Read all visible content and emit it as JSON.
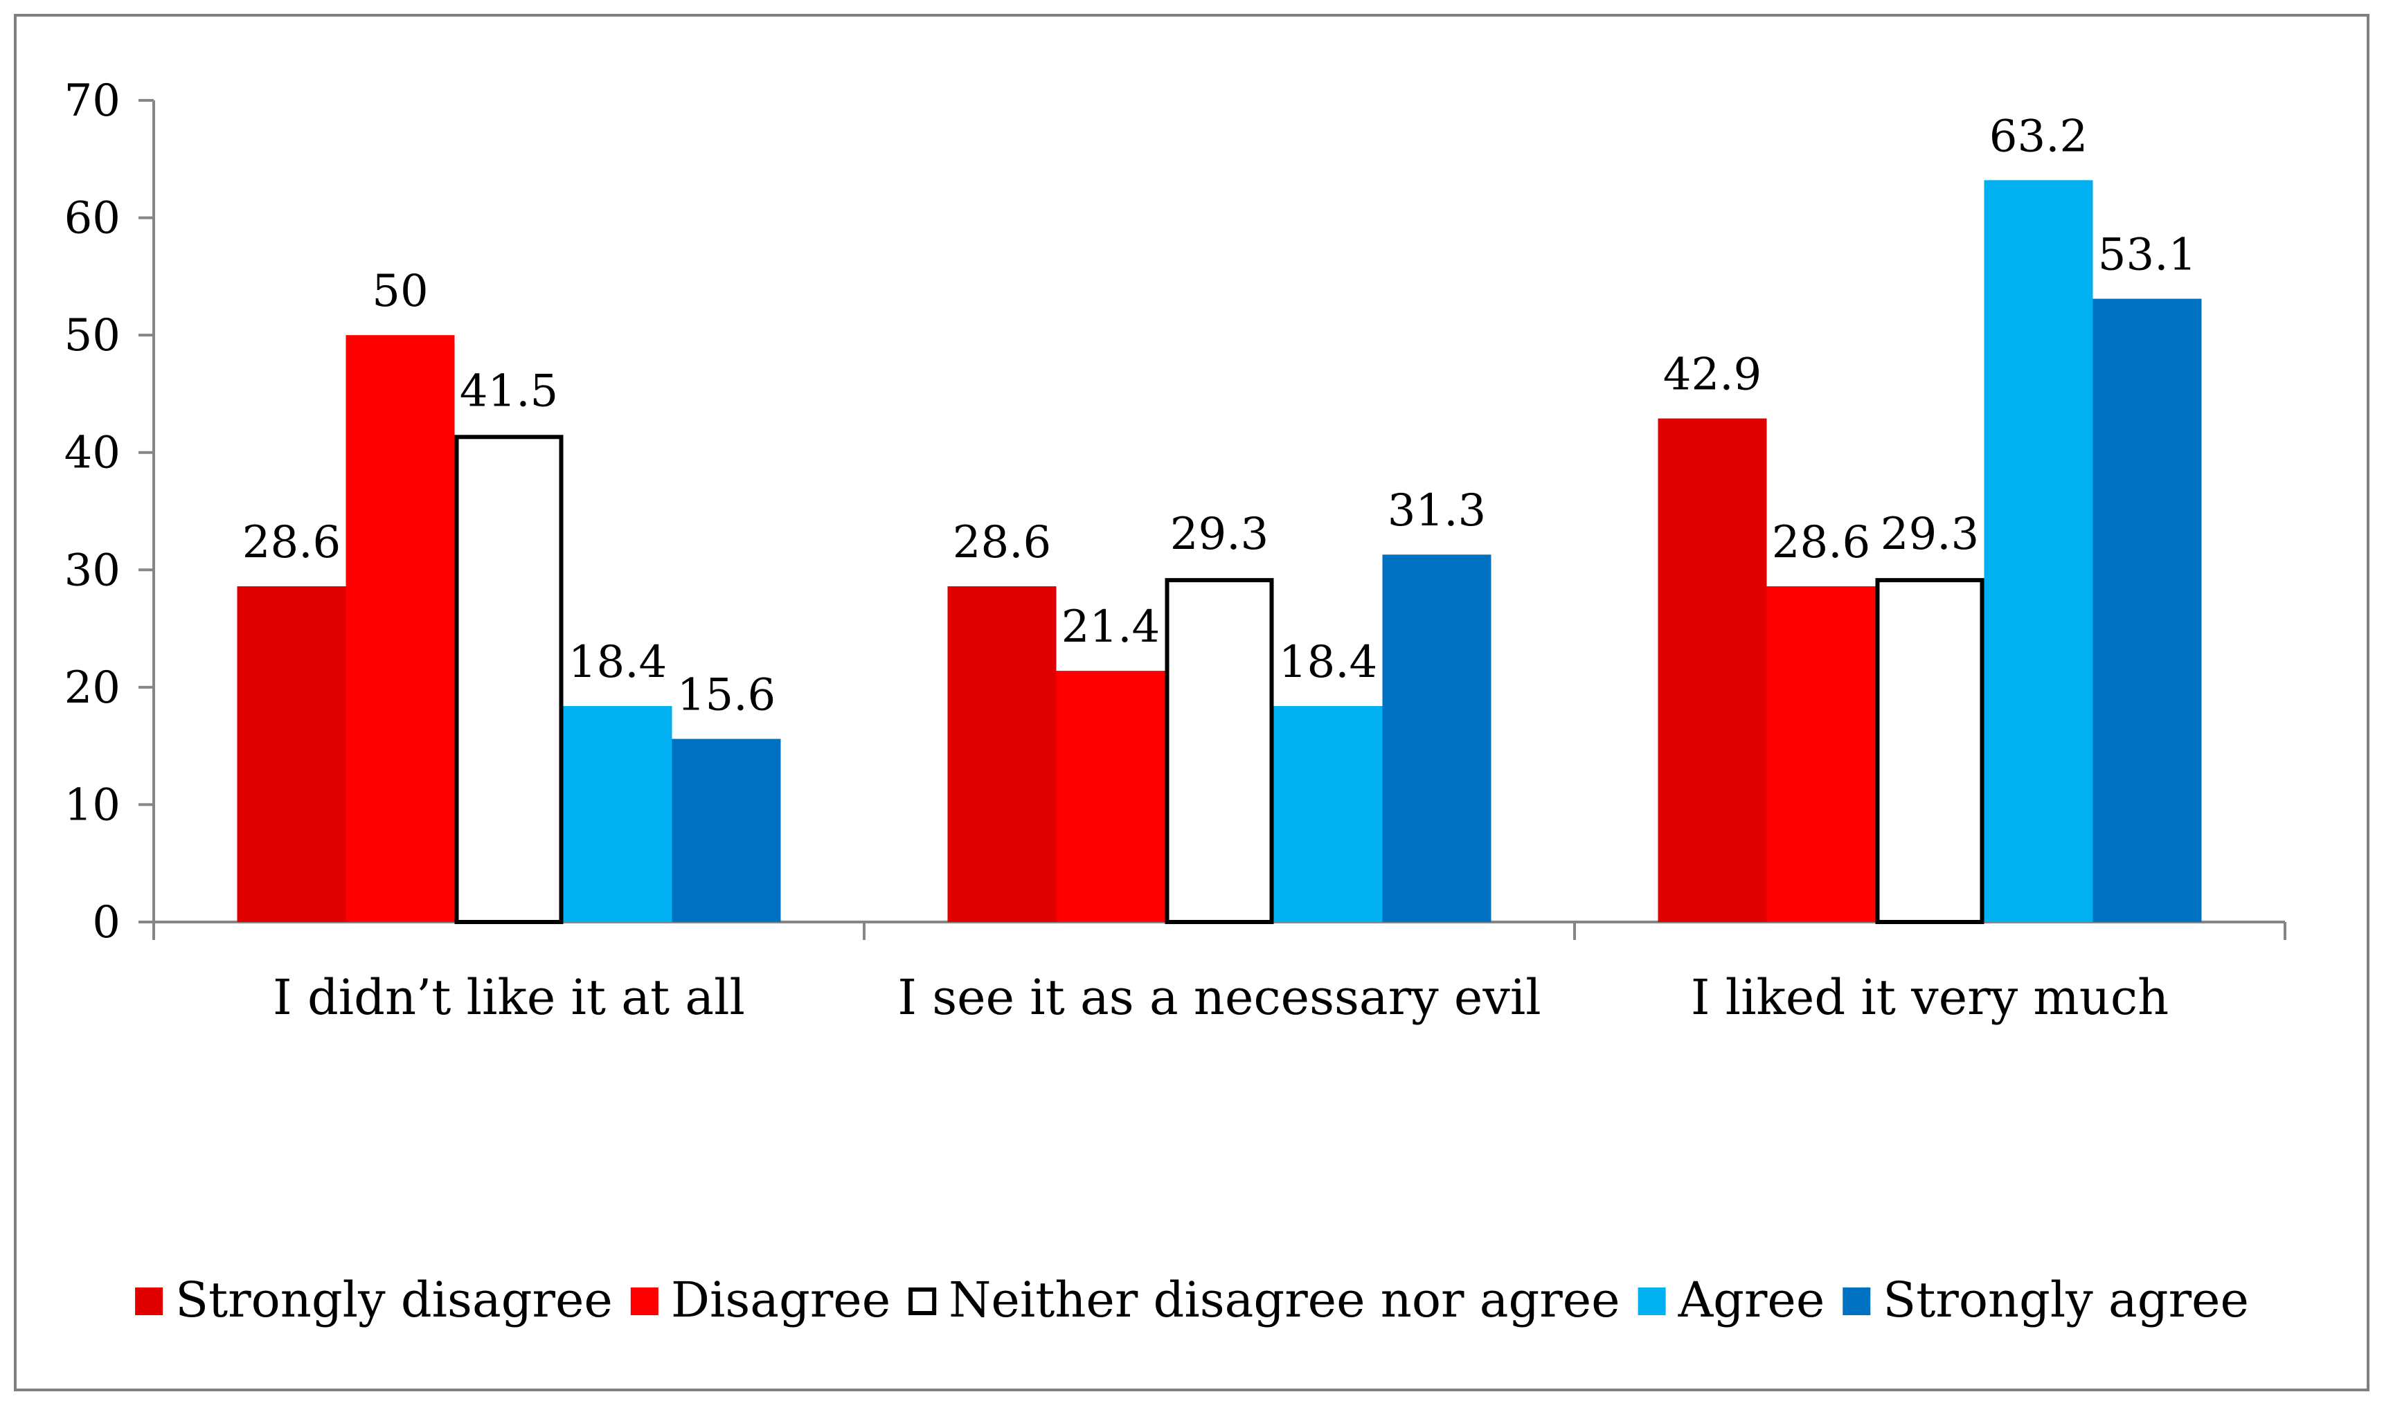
{
  "chart_data": {
    "type": "bar",
    "title": "",
    "xlabel": "",
    "ylabel": "",
    "ylim": [
      0,
      70
    ],
    "yticks": [
      0,
      10,
      20,
      30,
      40,
      50,
      60,
      70
    ],
    "grid": false,
    "legend_position": "bottom",
    "categories": [
      "I didn’t like it at all",
      "I see it as a necessary evil",
      "I liked it very much"
    ],
    "series": [
      {
        "name": "Strongly disagree",
        "color": "#E00000",
        "values": [
          28.6,
          28.6,
          42.9
        ],
        "labels": [
          "28.6",
          "28.6",
          "42.9"
        ]
      },
      {
        "name": "Disagree",
        "color": "#FF0000",
        "values": [
          50,
          21.4,
          28.6
        ],
        "labels": [
          "50",
          "21.4",
          "28.6"
        ]
      },
      {
        "name": "Neither disagree nor agree",
        "color": "#FFFFFF",
        "outline": "#000000",
        "values": [
          41.5,
          29.3,
          29.3
        ],
        "labels": [
          "41.5",
          "29.3",
          "29.3"
        ]
      },
      {
        "name": "Agree",
        "color": "#00B0F0",
        "values": [
          18.4,
          18.4,
          63.2
        ],
        "labels": [
          "18.4",
          "18.4",
          "63.2"
        ]
      },
      {
        "name": "Strongly agree",
        "color": "#0070C0",
        "values": [
          15.6,
          31.3,
          53.1
        ],
        "labels": [
          "15.6",
          "31.3",
          "53.1"
        ]
      }
    ]
  }
}
